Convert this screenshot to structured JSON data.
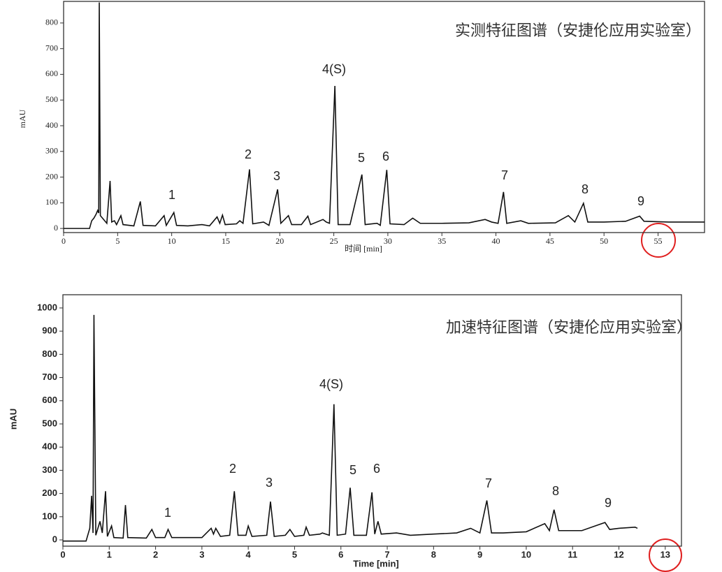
{
  "chart_data": [
    {
      "type": "line",
      "title": "实测特征图谱（安捷伦应用实验室）",
      "x_label": "时间 [min]",
      "y_label": "mAU",
      "color": "#111111",
      "annotations": [
        "1",
        "2",
        "3",
        "4(S)",
        "5",
        "6",
        "7",
        "8",
        "9"
      ],
      "x": [
        0,
        2.4,
        2.6,
        2.8,
        3.0,
        3.15,
        3.25,
        3.3,
        3.4,
        3.6,
        4.0,
        4.3,
        4.45,
        4.7,
        4.9,
        5.3,
        5.5,
        6.5,
        7.1,
        7.35,
        8.5,
        9.3,
        9.5,
        10.2,
        10.45,
        11.5,
        12.8,
        13.5,
        14.2,
        14.45,
        14.7,
        14.95,
        16.0,
        16.3,
        16.6,
        17.2,
        17.5,
        18.5,
        19.0,
        19.8,
        20.1,
        20.8,
        21.1,
        22.0,
        22.6,
        22.85,
        24.0,
        24.3,
        24.6,
        25.1,
        25.4,
        26.5,
        27.6,
        27.9,
        29.0,
        29.3,
        29.9,
        30.2,
        31.5,
        32.3,
        33.0,
        35,
        37.5,
        39.0,
        39.6,
        40.2,
        40.7,
        41.0,
        42.3,
        43.0,
        45.5,
        46.7,
        47.3,
        48.1,
        48.5,
        50,
        52,
        53.3,
        53.7,
        56,
        59.3
      ],
      "values": [
        0,
        0,
        30,
        40,
        55,
        70,
        60,
        880,
        50,
        40,
        20,
        185,
        25,
        30,
        15,
        50,
        15,
        10,
        105,
        12,
        10,
        50,
        12,
        62,
        12,
        10,
        15,
        10,
        45,
        20,
        52,
        15,
        18,
        30,
        20,
        230,
        18,
        25,
        12,
        152,
        20,
        50,
        15,
        15,
        48,
        15,
        35,
        25,
        20,
        555,
        15,
        15,
        210,
        15,
        20,
        12,
        228,
        18,
        15,
        40,
        20,
        20,
        22,
        35,
        25,
        20,
        142,
        20,
        30,
        20,
        22,
        50,
        25,
        98,
        25,
        25,
        28,
        48,
        28,
        25,
        25
      ],
      "xlim": [
        0,
        59.3
      ],
      "ylim": [
        -16,
        884
      ],
      "xticks": [
        0,
        5,
        10,
        15,
        20,
        25,
        30,
        35,
        40,
        45,
        50,
        55
      ],
      "yticks": [
        0,
        100,
        200,
        300,
        400,
        500,
        600,
        700,
        800
      ]
    },
    {
      "type": "line",
      "title": "加速特征图谱（安捷伦应用实验室）",
      "x_label": "Time [min]",
      "y_label": "mAU",
      "color": "#111111",
      "annotations": [
        "1",
        "2",
        "3",
        "4(S)",
        "5",
        "6",
        "7",
        "8",
        "9"
      ],
      "x": [
        0,
        0.5,
        0.58,
        0.62,
        0.65,
        0.67,
        0.71,
        0.8,
        0.85,
        0.92,
        0.96,
        1.05,
        1.1,
        1.3,
        1.35,
        1.4,
        1.8,
        1.92,
        2.0,
        2.2,
        2.27,
        2.35,
        3.0,
        3.2,
        3.25,
        3.3,
        3.4,
        3.6,
        3.7,
        3.78,
        3.95,
        4.0,
        4.08,
        4.4,
        4.48,
        4.56,
        4.8,
        4.9,
        5.0,
        5.2,
        5.25,
        5.32,
        5.55,
        5.6,
        5.75,
        5.85,
        5.92,
        6.1,
        6.2,
        6.28,
        6.55,
        6.67,
        6.73,
        6.8,
        6.87,
        7.2,
        7.5,
        8.0,
        8.5,
        8.8,
        9.0,
        9.15,
        9.25,
        9.5,
        10.0,
        10.4,
        10.5,
        10.6,
        10.7,
        11.2,
        11.7,
        11.8,
        12.0,
        12.35,
        12.4
      ],
      "values": [
        -5,
        -5,
        50,
        190,
        30,
        970,
        20,
        80,
        30,
        210,
        15,
        60,
        10,
        8,
        150,
        10,
        8,
        45,
        10,
        10,
        45,
        10,
        10,
        50,
        25,
        50,
        15,
        20,
        210,
        20,
        20,
        60,
        15,
        20,
        165,
        15,
        20,
        45,
        15,
        20,
        55,
        20,
        25,
        30,
        20,
        585,
        20,
        25,
        225,
        20,
        20,
        205,
        25,
        80,
        25,
        30,
        20,
        25,
        30,
        50,
        30,
        170,
        30,
        30,
        35,
        70,
        40,
        130,
        40,
        40,
        75,
        45,
        50,
        55,
        50
      ],
      "xlim": [
        0,
        13.35
      ],
      "ylim": [
        -27,
        1057
      ],
      "xticks": [
        0,
        1,
        2,
        3,
        4,
        5,
        6,
        7,
        8,
        9,
        10,
        11,
        12,
        13
      ],
      "yticks": [
        0,
        100,
        200,
        300,
        400,
        500,
        600,
        700,
        800,
        900,
        1000
      ]
    }
  ]
}
